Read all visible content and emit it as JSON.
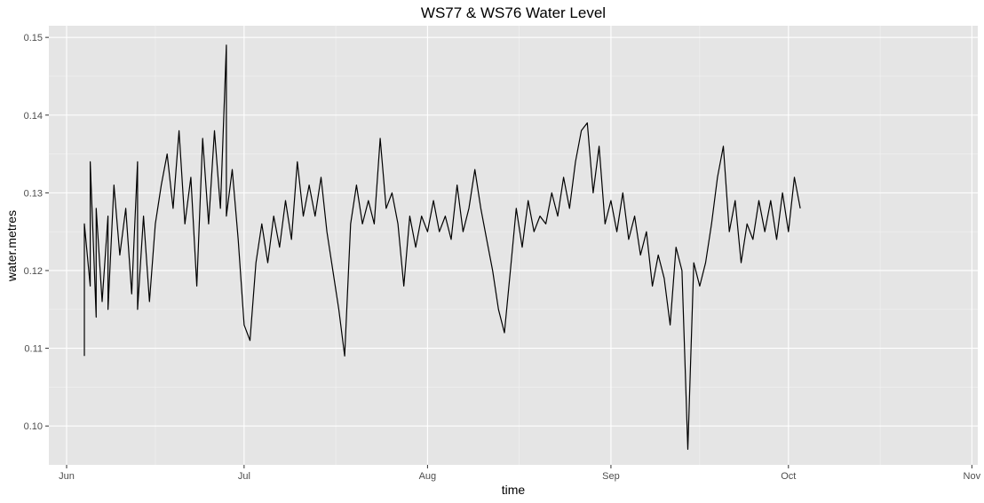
{
  "chart_data": {
    "type": "line",
    "title": "WS77 & WS76 Water Level",
    "xlabel": "time",
    "ylabel": "water.metres",
    "x_ticks": [
      "Jun",
      "Jul",
      "Aug",
      "Sep",
      "Oct",
      "Nov"
    ],
    "y_ticks": [
      "0.10",
      "0.11",
      "0.12",
      "0.13",
      "0.14",
      "0.15"
    ],
    "xlim": [
      "2016-05-29",
      "2016-11-02"
    ],
    "ylim": [
      0.095,
      0.1515
    ],
    "grid": true,
    "background": "#e5e5e5",
    "line_color": "#000000",
    "series": [
      {
        "points": [
          [
            "2016-06-04",
            0.109
          ],
          [
            "2016-06-04",
            0.126
          ],
          [
            "2016-06-05",
            0.118
          ],
          [
            "2016-06-05",
            0.134
          ],
          [
            "2016-06-06",
            0.114
          ],
          [
            "2016-06-06",
            0.128
          ],
          [
            "2016-06-07",
            0.116
          ],
          [
            "2016-06-08",
            0.127
          ],
          [
            "2016-06-08",
            0.115
          ],
          [
            "2016-06-09",
            0.131
          ],
          [
            "2016-06-10",
            0.122
          ],
          [
            "2016-06-11",
            0.128
          ],
          [
            "2016-06-12",
            0.117
          ],
          [
            "2016-06-13",
            0.134
          ],
          [
            "2016-06-13",
            0.115
          ],
          [
            "2016-06-14",
            0.127
          ],
          [
            "2016-06-15",
            0.116
          ],
          [
            "2016-06-16",
            0.126
          ],
          [
            "2016-06-17",
            0.131
          ],
          [
            "2016-06-18",
            0.135
          ],
          [
            "2016-06-19",
            0.128
          ],
          [
            "2016-06-20",
            0.138
          ],
          [
            "2016-06-21",
            0.126
          ],
          [
            "2016-06-22",
            0.132
          ],
          [
            "2016-06-23",
            0.118
          ],
          [
            "2016-06-24",
            0.137
          ],
          [
            "2016-06-25",
            0.126
          ],
          [
            "2016-06-26",
            0.138
          ],
          [
            "2016-06-27",
            0.128
          ],
          [
            "2016-06-28",
            0.149
          ],
          [
            "2016-06-28",
            0.127
          ],
          [
            "2016-06-29",
            0.133
          ],
          [
            "2016-06-30",
            0.124
          ],
          [
            "2016-07-01",
            0.113
          ],
          [
            "2016-07-02",
            0.111
          ],
          [
            "2016-07-03",
            0.121
          ],
          [
            "2016-07-04",
            0.126
          ],
          [
            "2016-07-05",
            0.121
          ],
          [
            "2016-07-06",
            0.127
          ],
          [
            "2016-07-07",
            0.123
          ],
          [
            "2016-07-08",
            0.129
          ],
          [
            "2016-07-09",
            0.124
          ],
          [
            "2016-07-10",
            0.134
          ],
          [
            "2016-07-11",
            0.127
          ],
          [
            "2016-07-12",
            0.131
          ],
          [
            "2016-07-13",
            0.127
          ],
          [
            "2016-07-14",
            0.132
          ],
          [
            "2016-07-15",
            0.125
          ],
          [
            "2016-07-16",
            0.12
          ],
          [
            "2016-07-17",
            0.115
          ],
          [
            "2016-07-18",
            0.109
          ],
          [
            "2016-07-19",
            0.126
          ],
          [
            "2016-07-20",
            0.131
          ],
          [
            "2016-07-21",
            0.126
          ],
          [
            "2016-07-22",
            0.129
          ],
          [
            "2016-07-23",
            0.126
          ],
          [
            "2016-07-24",
            0.137
          ],
          [
            "2016-07-25",
            0.128
          ],
          [
            "2016-07-26",
            0.13
          ],
          [
            "2016-07-27",
            0.126
          ],
          [
            "2016-07-28",
            0.118
          ],
          [
            "2016-07-29",
            0.127
          ],
          [
            "2016-07-30",
            0.123
          ],
          [
            "2016-07-31",
            0.127
          ],
          [
            "2016-08-01",
            0.125
          ],
          [
            "2016-08-02",
            0.129
          ],
          [
            "2016-08-03",
            0.125
          ],
          [
            "2016-08-04",
            0.127
          ],
          [
            "2016-08-05",
            0.124
          ],
          [
            "2016-08-06",
            0.131
          ],
          [
            "2016-08-07",
            0.125
          ],
          [
            "2016-08-08",
            0.128
          ],
          [
            "2016-08-09",
            0.133
          ],
          [
            "2016-08-10",
            0.128
          ],
          [
            "2016-08-11",
            0.124
          ],
          [
            "2016-08-12",
            0.12
          ],
          [
            "2016-08-13",
            0.115
          ],
          [
            "2016-08-14",
            0.112
          ],
          [
            "2016-08-15",
            0.12
          ],
          [
            "2016-08-16",
            0.128
          ],
          [
            "2016-08-17",
            0.123
          ],
          [
            "2016-08-18",
            0.129
          ],
          [
            "2016-08-19",
            0.125
          ],
          [
            "2016-08-20",
            0.127
          ],
          [
            "2016-08-21",
            0.126
          ],
          [
            "2016-08-22",
            0.13
          ],
          [
            "2016-08-23",
            0.127
          ],
          [
            "2016-08-24",
            0.132
          ],
          [
            "2016-08-25",
            0.128
          ],
          [
            "2016-08-26",
            0.134
          ],
          [
            "2016-08-27",
            0.138
          ],
          [
            "2016-08-28",
            0.139
          ],
          [
            "2016-08-29",
            0.13
          ],
          [
            "2016-08-30",
            0.136
          ],
          [
            "2016-08-31",
            0.126
          ],
          [
            "2016-09-01",
            0.129
          ],
          [
            "2016-09-02",
            0.125
          ],
          [
            "2016-09-03",
            0.13
          ],
          [
            "2016-09-04",
            0.124
          ],
          [
            "2016-09-05",
            0.127
          ],
          [
            "2016-09-06",
            0.122
          ],
          [
            "2016-09-07",
            0.125
          ],
          [
            "2016-09-08",
            0.118
          ],
          [
            "2016-09-09",
            0.122
          ],
          [
            "2016-09-10",
            0.119
          ],
          [
            "2016-09-11",
            0.113
          ],
          [
            "2016-09-12",
            0.123
          ],
          [
            "2016-09-13",
            0.12
          ],
          [
            "2016-09-14",
            0.097
          ],
          [
            "2016-09-15",
            0.121
          ],
          [
            "2016-09-16",
            0.118
          ],
          [
            "2016-09-17",
            0.121
          ],
          [
            "2016-09-18",
            0.126
          ],
          [
            "2016-09-19",
            0.132
          ],
          [
            "2016-09-20",
            0.136
          ],
          [
            "2016-09-21",
            0.125
          ],
          [
            "2016-09-22",
            0.129
          ],
          [
            "2016-09-23",
            0.121
          ],
          [
            "2016-09-24",
            0.126
          ],
          [
            "2016-09-25",
            0.124
          ],
          [
            "2016-09-26",
            0.129
          ],
          [
            "2016-09-27",
            0.125
          ],
          [
            "2016-09-28",
            0.129
          ],
          [
            "2016-09-29",
            0.124
          ],
          [
            "2016-09-30",
            0.13
          ],
          [
            "2016-10-01",
            0.125
          ],
          [
            "2016-10-02",
            0.132
          ],
          [
            "2016-10-03",
            0.128
          ]
        ]
      }
    ]
  }
}
